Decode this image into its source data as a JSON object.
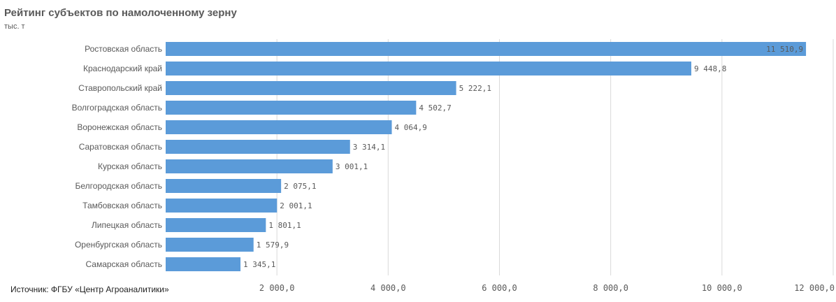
{
  "title": "Рейтинг субъектов по намолоченному зерну",
  "subtitle": "тыс. т",
  "source": "Источник: ФГБУ «Центр Агроаналитики»",
  "colors": {
    "bar": "#5b9bd9",
    "grid": "#d9d9d9",
    "text": "#595959"
  },
  "chart_data": {
    "type": "bar",
    "orientation": "horizontal",
    "title": "Рейтинг субъектов по намолоченному зерну",
    "subtitle": "тыс. т",
    "categories": [
      "Ростовская область",
      "Краснодарский край",
      "Ставропольский край",
      "Волгоградская область",
      "Воронежская область",
      "Саратовская область",
      "Курская область",
      "Белгородская область",
      "Тамбовская область",
      "Липецкая область",
      "Оренбургская область",
      "Самарская область"
    ],
    "values": [
      11510.9,
      9448.8,
      5222.1,
      4502.7,
      4064.9,
      3314.1,
      3001.1,
      2075.1,
      2001.1,
      1801.1,
      1579.9,
      1345.1
    ],
    "value_labels": [
      "11 510,9",
      "9 448,8",
      "5 222,1",
      "4 502,7",
      "4 064,9",
      "3 314,1",
      "3 001,1",
      "2 075,1",
      "2 001,1",
      "1 801,1",
      "1 579,9",
      "1 345,1"
    ],
    "xlim": [
      0,
      12000
    ],
    "xticks": [
      2000,
      4000,
      6000,
      8000,
      10000,
      12000
    ],
    "xtick_labels": [
      "2 000,0",
      "4 000,0",
      "6 000,0",
      "8 000,0",
      "10 000,0",
      "12 000,0"
    ],
    "grid": true
  }
}
